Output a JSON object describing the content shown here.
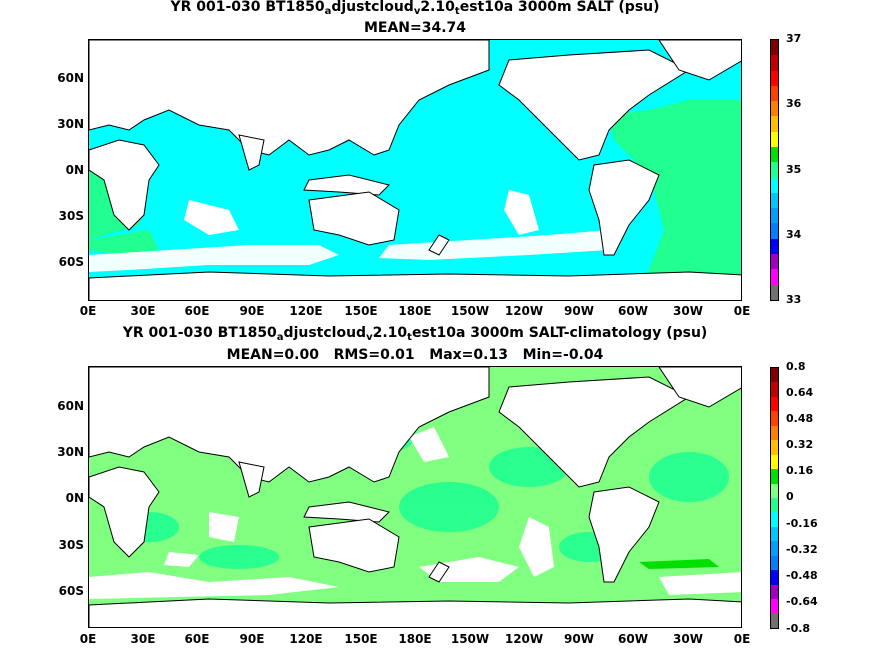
{
  "panels": [
    {
      "title_parts": [
        "YR 001-030 BT1850",
        "a",
        "djustcloud",
        "v",
        "2.10",
        "t",
        "est10a 3000m SALT (psu)"
      ],
      "subtitle": "MEAN=34.74",
      "y_labels": [
        "60N",
        "30N",
        "0N",
        "30S",
        "60S"
      ],
      "x_labels": [
        "0E",
        "30E",
        "60E",
        "90E",
        "120E",
        "150E",
        "180E",
        "150W",
        "120W",
        "90W",
        "60W",
        "30W",
        "0E"
      ],
      "colorbar_labels": [
        "37",
        "36",
        "35",
        "34",
        "33"
      ],
      "colorbar_colors": [
        "#707070",
        "#ff00ff",
        "#a000c0",
        "#0000ff",
        "#0080ff",
        "#00a0ff",
        "#00c8ff",
        "#00ffff",
        "#20ff90",
        "#00e000",
        "#ffff00",
        "#ffc000",
        "#ff8000",
        "#ff4000",
        "#ff0000",
        "#c00000",
        "#800000"
      ],
      "colors": {
        "ocean": "#00ffff",
        "highlight": "#20ff90",
        "land": "#ffffff"
      }
    },
    {
      "title_parts": [
        "YR 001-030 BT1850",
        "a",
        "djustcloud",
        "v",
        "2.10",
        "t",
        "est10a 3000m SALT-climatology (psu)"
      ],
      "subtitle": "MEAN=0.00   RMS=0.01   Max=0.13   Min=-0.04",
      "y_labels": [
        "60N",
        "30N",
        "0N",
        "30S",
        "60S"
      ],
      "x_labels": [
        "0E",
        "30E",
        "60E",
        "90E",
        "120E",
        "150E",
        "180E",
        "150W",
        "120W",
        "90W",
        "60W",
        "30W",
        "0E"
      ],
      "colorbar_labels": [
        "0.8",
        "0.64",
        "0.48",
        "0.32",
        "0.16",
        "0",
        "-0.16",
        "-0.32",
        "-0.48",
        "-0.64",
        "-0.8"
      ],
      "colorbar_colors": [
        "#707070",
        "#ff00ff",
        "#a000c0",
        "#0000ff",
        "#0080ff",
        "#00a0ff",
        "#00c8ff",
        "#00ffff",
        "#20ff90",
        "#80ff80",
        "#00e000",
        "#ffff00",
        "#ffc000",
        "#ff8000",
        "#ff4000",
        "#ff0000",
        "#c00000",
        "#800000"
      ],
      "colors": {
        "ocean": "#80ff80",
        "highlight": "#20ff90",
        "land": "#ffffff"
      }
    }
  ]
}
